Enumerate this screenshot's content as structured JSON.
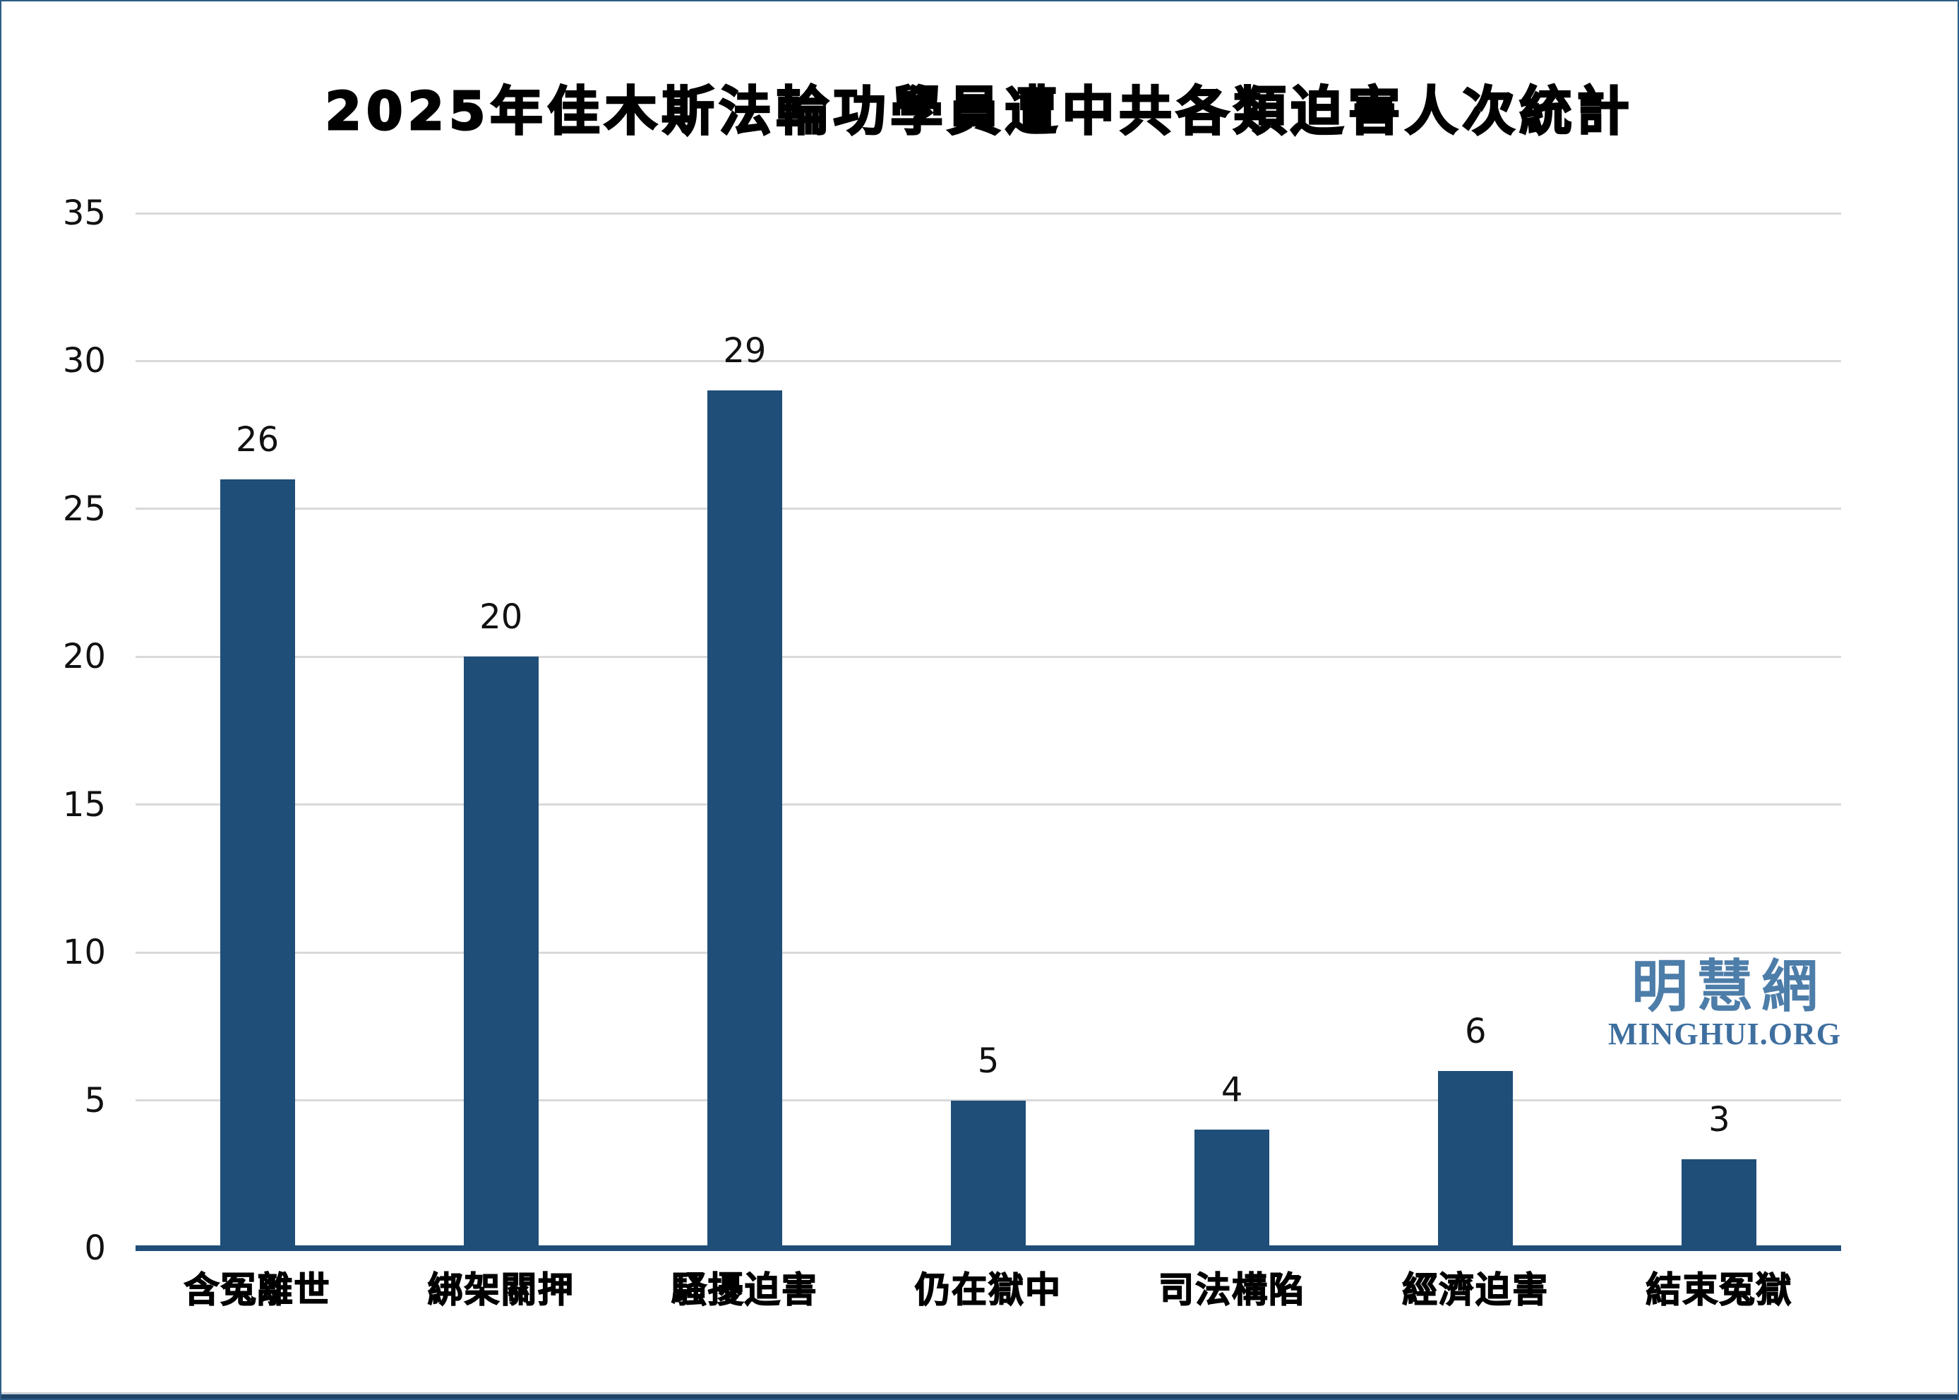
{
  "page": {
    "background": "#ffffff",
    "border_color": "#2e5c87",
    "footer_bar_color": "#1d4468",
    "footer_line_color": "#cdd2d8"
  },
  "chart_data": {
    "type": "bar",
    "title": "2025年佳木斯法輪功學員遭中共各類迫害人次統計",
    "categories": [
      "含冤離世",
      "綁架關押",
      "騷擾迫害",
      "仍在獄中",
      "司法構陷",
      "經濟迫害",
      "結束冤獄"
    ],
    "values": [
      26,
      20,
      29,
      5,
      4,
      6,
      3
    ],
    "xlabel": "",
    "ylabel": "",
    "ylim": [
      0,
      35
    ],
    "yticks": [
      0,
      5,
      10,
      15,
      20,
      25,
      30,
      35
    ],
    "grid": true,
    "legend": "none",
    "bar_color": "#1f4e79",
    "axis_line_color": "#1f4e79",
    "gridline_color": "#d9d9d9",
    "value_label_color": "#111111",
    "tick_label_color": "#111111"
  },
  "watermark": {
    "cjk": "明慧網",
    "latin": "MINGHUI.ORG",
    "cjk_color": "#4d7da9",
    "latin_color": "#3e6f9f"
  }
}
